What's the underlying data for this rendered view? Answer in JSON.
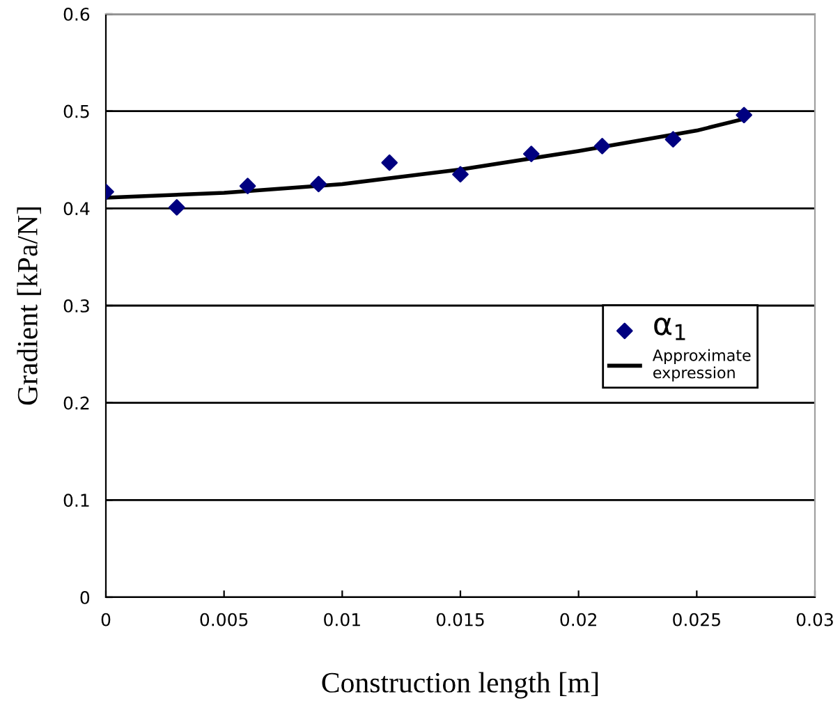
{
  "chart_data": {
    "type": "scatter",
    "xlabel": "Construction length [m]",
    "ylabel": "Gradient [kPa/N]",
    "xlim": [
      0,
      0.03
    ],
    "xticks": [
      0,
      0.005,
      0.01,
      0.015,
      0.02,
      0.025,
      0.03
    ],
    "ylim": [
      0,
      0.6
    ],
    "yticks": [
      0,
      0.1,
      0.2,
      0.3,
      0.4,
      0.5,
      0.6
    ],
    "grid": "y",
    "legend": "right",
    "series": [
      {
        "name": "α$_{1}$",
        "marker": "diamond",
        "color": "#000080",
        "x": [
          0,
          0.003,
          0.006,
          0.009,
          0.012,
          0.015,
          0.018,
          0.021,
          0.024,
          0.027
        ],
        "values": [
          0.417,
          0.401,
          0.423,
          0.425,
          0.447,
          0.435,
          0.456,
          0.464,
          0.471,
          0.496
        ]
      },
      {
        "name": "Approximate\nexpression",
        "type": "line",
        "line_style": "solid",
        "color": "#000000",
        "x": [
          0,
          0.005,
          0.01,
          0.015,
          0.02,
          0.025,
          0.027
        ],
        "values": [
          0.411,
          0.416,
          0.425,
          0.44,
          0.459,
          0.48,
          0.492
        ]
      }
    ]
  }
}
